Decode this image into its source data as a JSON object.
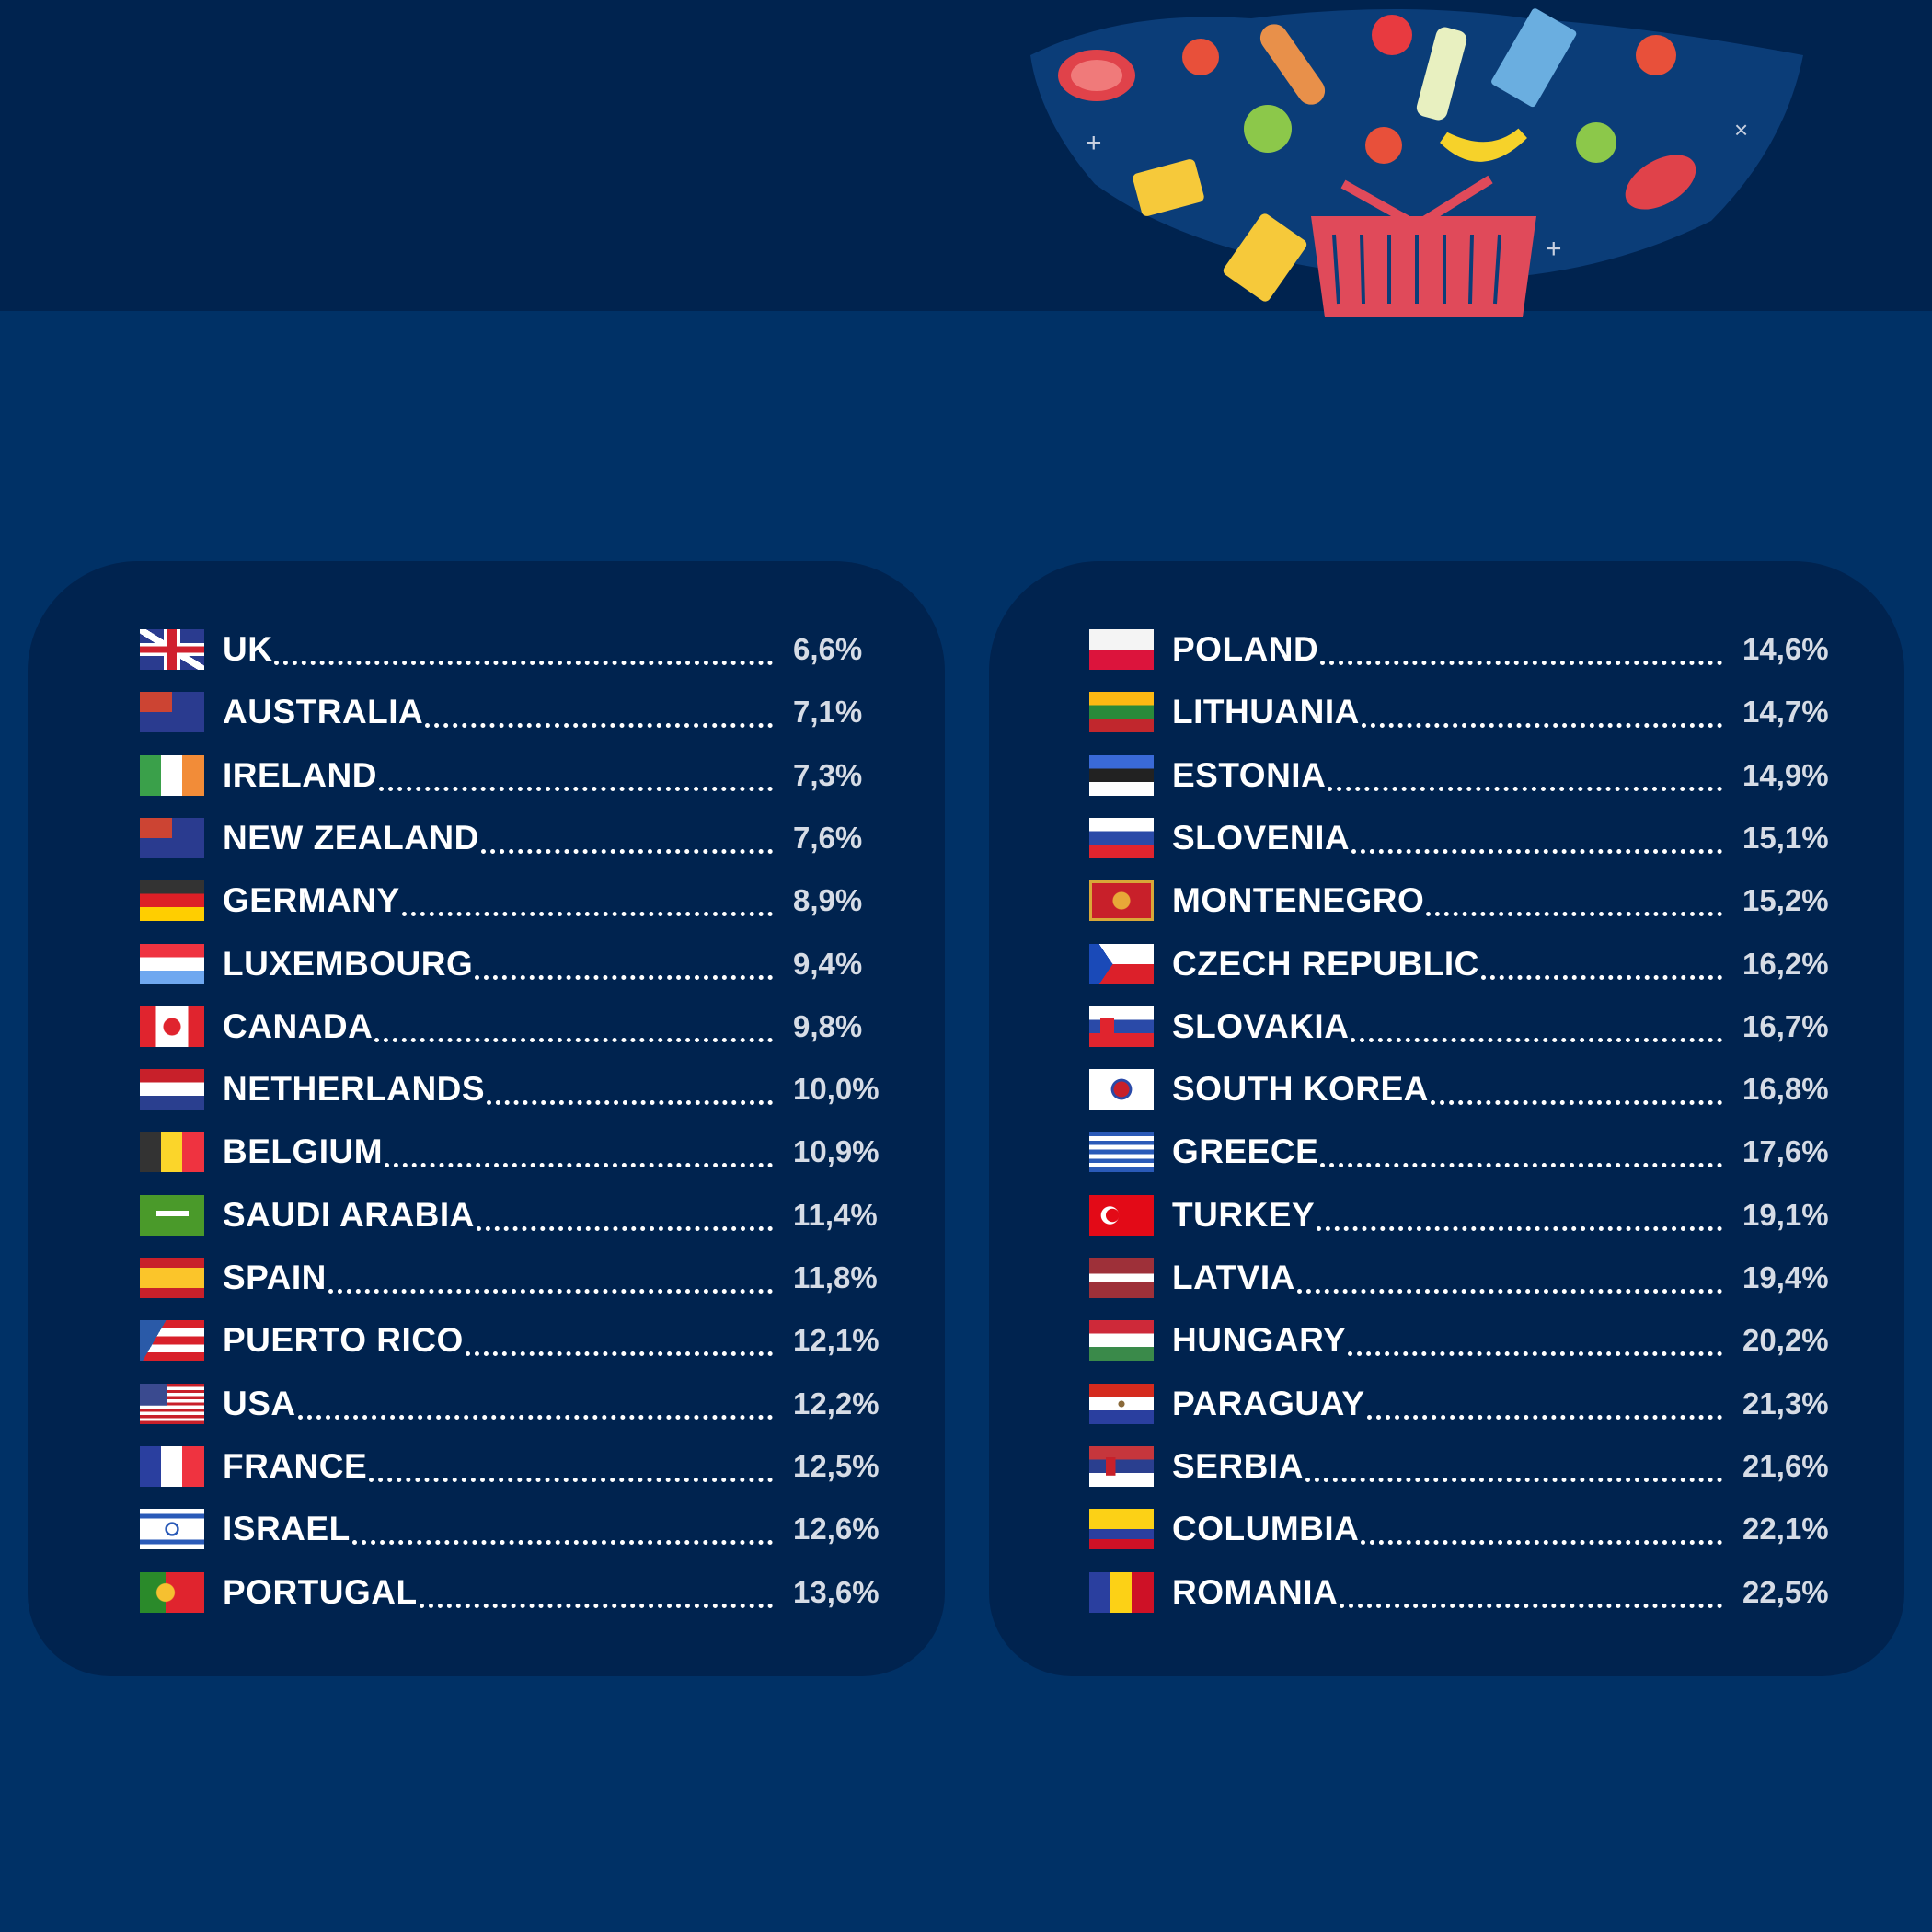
{
  "left_list": [
    {
      "country": "UK",
      "value": "6,6%",
      "flag": "uk-flag"
    },
    {
      "country": "AUSTRALIA",
      "value": "7,1%",
      "flag": "australia-flag"
    },
    {
      "country": "IRELAND",
      "value": "7,3%",
      "flag": "ireland-flag"
    },
    {
      "country": "NEW ZEALAND",
      "value": "7,6%",
      "flag": "new-zealand-flag"
    },
    {
      "country": "GERMANY",
      "value": "8,9%",
      "flag": "germany-flag"
    },
    {
      "country": "LUXEMBOURG",
      "value": "9,4%",
      "flag": "luxembourg-flag"
    },
    {
      "country": "CANADA",
      "value": "9,8%",
      "flag": "canada-flag"
    },
    {
      "country": "NETHERLANDS",
      "value": "10,0%",
      "flag": "netherlands-flag"
    },
    {
      "country": "BELGIUM",
      "value": "10,9%",
      "flag": "belgium-flag"
    },
    {
      "country": "SAUDI ARABIA",
      "value": "11,4%",
      "flag": "saudi-arabia-flag"
    },
    {
      "country": "SPAIN",
      "value": "11,8%",
      "flag": "spain-flag"
    },
    {
      "country": "PUERTO RICO",
      "value": "12,1%",
      "flag": "puerto-rico-flag"
    },
    {
      "country": "USA",
      "value": "12,2%",
      "flag": "usa-flag"
    },
    {
      "country": "FRANCE",
      "value": "12,5%",
      "flag": "france-flag"
    },
    {
      "country": "ISRAEL",
      "value": "12,6%",
      "flag": "israel-flag"
    },
    {
      "country": "PORTUGAL",
      "value": "13,6%",
      "flag": "portugal-flag"
    }
  ],
  "right_list": [
    {
      "country": "POLAND",
      "value": "14,6%",
      "flag": "poland-flag"
    },
    {
      "country": "LITHUANIA",
      "value": "14,7%",
      "flag": "lithuania-flag"
    },
    {
      "country": "ESTONIA",
      "value": "14,9%",
      "flag": "estonia-flag"
    },
    {
      "country": "SLOVENIA",
      "value": "15,1%",
      "flag": "slovenia-flag"
    },
    {
      "country": "MONTENEGRO",
      "value": "15,2%",
      "flag": "montenegro-flag"
    },
    {
      "country": "CZECH REPUBLIC",
      "value": "16,2%",
      "flag": "czech-republic-flag"
    },
    {
      "country": "SLOVAKIA",
      "value": "16,7%",
      "flag": "slovakia-flag"
    },
    {
      "country": "SOUTH KOREA",
      "value": "16,8%",
      "flag": "south-korea-flag"
    },
    {
      "country": "GREECE",
      "value": "17,6%",
      "flag": "greece-flag"
    },
    {
      "country": "TURKEY",
      "value": "19,1%",
      "flag": "turkey-flag"
    },
    {
      "country": "LATVIA",
      "value": "19,4%",
      "flag": "latvia-flag"
    },
    {
      "country": "HUNGARY",
      "value": "20,2%",
      "flag": "hungary-flag"
    },
    {
      "country": "PARAGUAY",
      "value": "21,3%",
      "flag": "paraguay-flag"
    },
    {
      "country": "SERBIA",
      "value": "21,6%",
      "flag": "serbia-flag"
    },
    {
      "country": "COLUMBIA",
      "value": "22,1%",
      "flag": "colombia-flag"
    },
    {
      "country": "ROMANIA",
      "value": "22,5%",
      "flag": "romania-flag"
    }
  ],
  "colors": {
    "header_bg": "#00234f",
    "page_bg": "#003166",
    "panel_bg": "#00234f",
    "basket": "#e04a5a"
  }
}
